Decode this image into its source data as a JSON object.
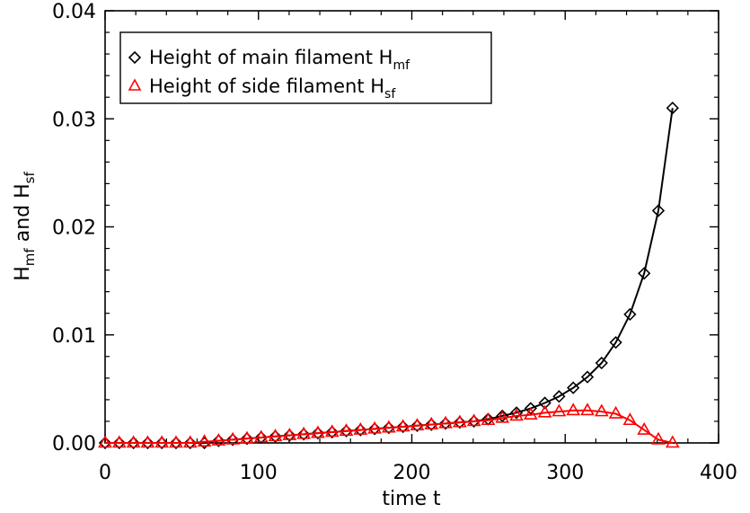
{
  "chart_data": {
    "type": "line",
    "title": "",
    "xlabel": "time t",
    "ylabel_parts": [
      "H",
      "mf",
      " and H",
      "sf"
    ],
    "xlim": [
      0,
      400
    ],
    "ylim": [
      0,
      0.04
    ],
    "x_ticks": [
      "0",
      "100",
      "200",
      "300",
      "400"
    ],
    "y_ticks": [
      "0.00",
      "0.01",
      "0.02",
      "0.03",
      "0.04"
    ],
    "grid": false,
    "legend_position": "top-left",
    "series": [
      {
        "legend_parts": [
          "Height of main filament H",
          "mf"
        ],
        "marker": "diamond",
        "color": "#000000",
        "x": [
          0,
          9.25,
          18.5,
          27.75,
          37,
          46.25,
          55.5,
          64.75,
          74,
          83.25,
          92.5,
          101.75,
          111,
          120.25,
          129.5,
          138.75,
          148,
          157.25,
          166.5,
          175.75,
          185,
          194.25,
          203.5,
          212.75,
          222,
          231.25,
          240.5,
          249.75,
          259,
          268.25,
          277.5,
          286.75,
          296,
          305.25,
          314.5,
          323.75,
          333,
          342.25,
          351.5,
          360.75,
          370
        ],
        "y": [
          0.0,
          0.0,
          0.0,
          0.0,
          0.0,
          0.0,
          0.0,
          0.0,
          0.0002,
          0.0003,
          0.0004,
          0.0005,
          0.0006,
          0.0007,
          0.0008,
          0.0009,
          0.001,
          0.0011,
          0.0012,
          0.0013,
          0.0014,
          0.0015,
          0.0016,
          0.0017,
          0.0018,
          0.0019,
          0.002,
          0.0022,
          0.0025,
          0.0028,
          0.0032,
          0.0037,
          0.0043,
          0.0051,
          0.0061,
          0.0074,
          0.0093,
          0.0119,
          0.0157,
          0.0215,
          0.031
        ]
      },
      {
        "legend_parts": [
          "Height of side filament H",
          "sf"
        ],
        "marker": "triangle",
        "color": "#ff0000",
        "x": [
          0,
          9.25,
          18.5,
          27.75,
          37,
          46.25,
          55.5,
          64.75,
          74,
          83.25,
          92.5,
          101.75,
          111,
          120.25,
          129.5,
          138.75,
          148,
          157.25,
          166.5,
          175.75,
          185,
          194.25,
          203.5,
          212.75,
          222,
          231.25,
          240.5,
          249.75,
          259,
          268.25,
          277.5,
          286.75,
          296,
          305.25,
          314.5,
          323.75,
          333,
          342.25,
          351.5,
          360.75,
          370
        ],
        "y": [
          0.0,
          0.0,
          0.0,
          0.0,
          0.0,
          0.0,
          0.0,
          0.0001,
          0.0002,
          0.0003,
          0.0004,
          0.0005,
          0.0006,
          0.0007,
          0.0008,
          0.0009,
          0.001,
          0.0011,
          0.0012,
          0.0013,
          0.0014,
          0.0015,
          0.0016,
          0.0017,
          0.0018,
          0.0019,
          0.002,
          0.0021,
          0.0023,
          0.0025,
          0.0026,
          0.0028,
          0.0029,
          0.003,
          0.003,
          0.0029,
          0.0027,
          0.0021,
          0.0012,
          0.0003,
          0.0
        ]
      }
    ]
  }
}
